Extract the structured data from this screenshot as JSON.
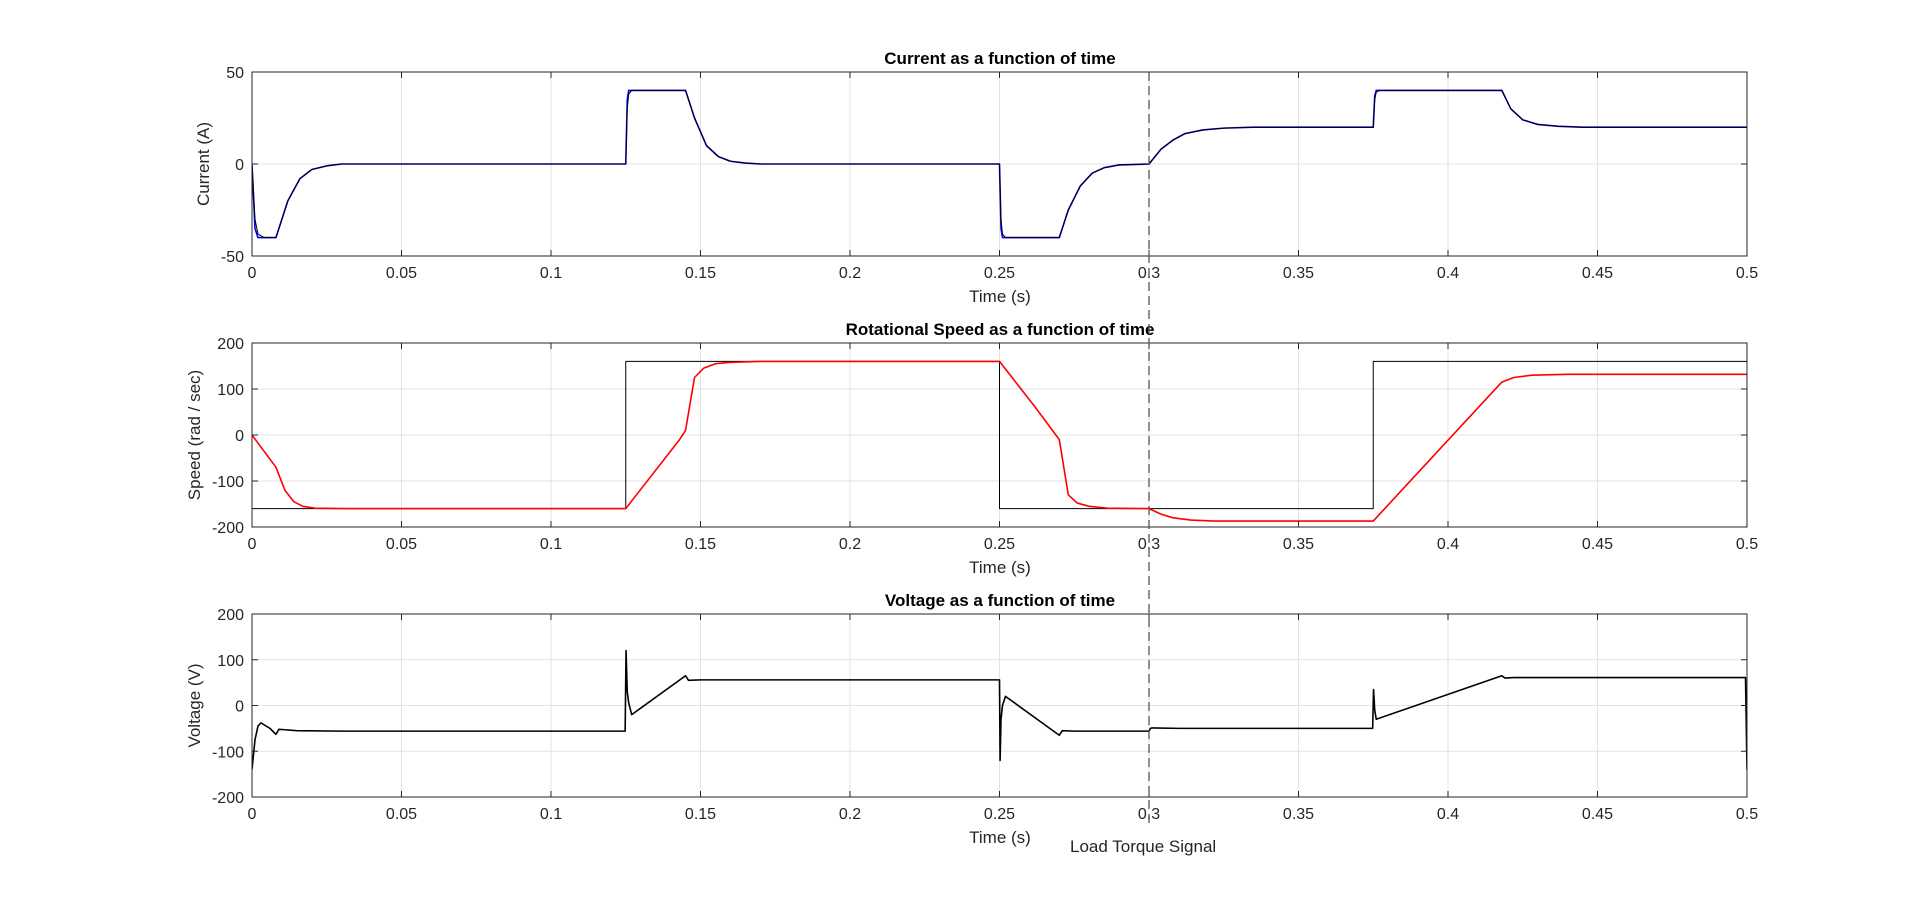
{
  "chart_data": [
    {
      "type": "line",
      "title": "Current as a function of time",
      "xlabel": "Time (s)",
      "ylabel": "Current (A)",
      "xlim": [
        0,
        0.5
      ],
      "ylim": [
        -50,
        50
      ],
      "xticks": [
        "0",
        "0.05",
        "0.1",
        "0.15",
        "0.2",
        "0.25",
        "0.3",
        "0.35",
        "0.4",
        "0.45",
        "0.5"
      ],
      "yticks": [
        "-50",
        "0",
        "50"
      ],
      "grid": true,
      "series": [
        {
          "color": "#0000ff",
          "width": 1.6,
          "points": [
            [
              0,
              0
            ],
            [
              0.001,
              -35
            ],
            [
              0.002,
              -40
            ],
            [
              0.008,
              -40
            ],
            [
              0.012,
              -20
            ],
            [
              0.016,
              -8
            ],
            [
              0.02,
              -3
            ],
            [
              0.025,
              -1
            ],
            [
              0.03,
              0
            ],
            [
              0.125,
              0
            ],
            [
              0.1255,
              35
            ],
            [
              0.126,
              40
            ],
            [
              0.145,
              40
            ],
            [
              0.148,
              25
            ],
            [
              0.152,
              10
            ],
            [
              0.156,
              4
            ],
            [
              0.16,
              1.5
            ],
            [
              0.165,
              0.5
            ],
            [
              0.17,
              0
            ],
            [
              0.25,
              0
            ],
            [
              0.2505,
              -35
            ],
            [
              0.251,
              -40
            ],
            [
              0.27,
              -40
            ],
            [
              0.273,
              -25
            ],
            [
              0.277,
              -12
            ],
            [
              0.281,
              -5
            ],
            [
              0.285,
              -2
            ],
            [
              0.29,
              -0.5
            ],
            [
              0.3,
              0
            ],
            [
              0.304,
              8
            ],
            [
              0.308,
              13
            ],
            [
              0.312,
              16.5
            ],
            [
              0.318,
              18.5
            ],
            [
              0.325,
              19.5
            ],
            [
              0.335,
              20
            ],
            [
              0.375,
              20
            ],
            [
              0.3755,
              37
            ],
            [
              0.376,
              40
            ],
            [
              0.418,
              40
            ],
            [
              0.421,
              30
            ],
            [
              0.425,
              24
            ],
            [
              0.43,
              21.5
            ],
            [
              0.437,
              20.5
            ],
            [
              0.445,
              20
            ],
            [
              0.5,
              20
            ]
          ]
        },
        {
          "color": "#000000",
          "width": 1.0,
          "points": [
            [
              0,
              0
            ],
            [
              0.001,
              -30
            ],
            [
              0.002,
              -38
            ],
            [
              0.004,
              -40
            ],
            [
              0.008,
              -40
            ],
            [
              0.012,
              -20
            ],
            [
              0.016,
              -8
            ],
            [
              0.02,
              -3
            ],
            [
              0.025,
              -1
            ],
            [
              0.03,
              0
            ],
            [
              0.125,
              0
            ],
            [
              0.1255,
              30
            ],
            [
              0.126,
              38
            ],
            [
              0.127,
              40
            ],
            [
              0.145,
              40
            ],
            [
              0.148,
              25
            ],
            [
              0.152,
              10
            ],
            [
              0.156,
              4
            ],
            [
              0.16,
              1.5
            ],
            [
              0.165,
              0.5
            ],
            [
              0.17,
              0
            ],
            [
              0.25,
              0
            ],
            [
              0.2505,
              -30
            ],
            [
              0.251,
              -38
            ],
            [
              0.252,
              -40
            ],
            [
              0.27,
              -40
            ],
            [
              0.273,
              -25
            ],
            [
              0.277,
              -12
            ],
            [
              0.281,
              -5
            ],
            [
              0.285,
              -2
            ],
            [
              0.29,
              -0.5
            ],
            [
              0.3,
              0
            ],
            [
              0.304,
              8
            ],
            [
              0.308,
              13
            ],
            [
              0.312,
              16.5
            ],
            [
              0.318,
              18.5
            ],
            [
              0.325,
              19.5
            ],
            [
              0.335,
              20
            ],
            [
              0.375,
              20
            ],
            [
              0.3755,
              35
            ],
            [
              0.376,
              39
            ],
            [
              0.377,
              40
            ],
            [
              0.418,
              40
            ],
            [
              0.421,
              30
            ],
            [
              0.425,
              24
            ],
            [
              0.43,
              21.5
            ],
            [
              0.437,
              20.5
            ],
            [
              0.445,
              20
            ],
            [
              0.5,
              20
            ]
          ]
        }
      ]
    },
    {
      "type": "line",
      "title": "Rotational Speed as a function of time",
      "xlabel": "Time (s)",
      "ylabel": "Speed (rad / sec)",
      "xlim": [
        0,
        0.5
      ],
      "ylim": [
        -200,
        200
      ],
      "xticks": [
        "0",
        "0.05",
        "0.1",
        "0.15",
        "0.2",
        "0.25",
        "0.3",
        "0.35",
        "0.4",
        "0.45",
        "0.5"
      ],
      "yticks": [
        "-200",
        "-100",
        "0",
        "100",
        "200"
      ],
      "grid": true,
      "series": [
        {
          "color": "#000000",
          "width": 1.0,
          "points": [
            [
              0,
              -160
            ],
            [
              0.125,
              -160
            ],
            [
              0.125,
              160
            ],
            [
              0.25,
              160
            ],
            [
              0.25,
              -160
            ],
            [
              0.375,
              -160
            ],
            [
              0.375,
              160
            ],
            [
              0.5,
              160
            ]
          ]
        },
        {
          "color": "#ff0000",
          "width": 1.6,
          "points": [
            [
              0,
              0
            ],
            [
              0.008,
              -70
            ],
            [
              0.011,
              -120
            ],
            [
              0.014,
              -145
            ],
            [
              0.017,
              -155
            ],
            [
              0.021,
              -159
            ],
            [
              0.03,
              -160
            ],
            [
              0.125,
              -160
            ],
            [
              0.143,
              -10
            ],
            [
              0.145,
              10
            ],
            [
              0.148,
              125
            ],
            [
              0.151,
              145
            ],
            [
              0.155,
              155
            ],
            [
              0.16,
              158
            ],
            [
              0.17,
              160
            ],
            [
              0.25,
              160
            ],
            [
              0.262,
              60
            ],
            [
              0.27,
              -10
            ],
            [
              0.273,
              -130
            ],
            [
              0.276,
              -148
            ],
            [
              0.28,
              -155
            ],
            [
              0.286,
              -159
            ],
            [
              0.3,
              -160
            ],
            [
              0.304,
              -172
            ],
            [
              0.308,
              -180
            ],
            [
              0.314,
              -185
            ],
            [
              0.322,
              -187
            ],
            [
              0.375,
              -187
            ],
            [
              0.418,
              115
            ],
            [
              0.422,
              125
            ],
            [
              0.428,
              130
            ],
            [
              0.44,
              132
            ],
            [
              0.5,
              132
            ]
          ]
        }
      ]
    },
    {
      "type": "line",
      "title": "Voltage as a function of time",
      "xlabel": "Time (s)",
      "ylabel": "Voltage (V)",
      "xlim": [
        0,
        0.5
      ],
      "ylim": [
        -200,
        200
      ],
      "xticks": [
        "0",
        "0.05",
        "0.1",
        "0.15",
        "0.2",
        "0.25",
        "0.3",
        "0.35",
        "0.4",
        "0.45",
        "0.5"
      ],
      "yticks": [
        "-200",
        "-100",
        "0",
        "100",
        "200"
      ],
      "grid": true,
      "series": [
        {
          "color": "#000000",
          "width": 1.6,
          "points": [
            [
              0,
              -140
            ],
            [
              0.001,
              -75
            ],
            [
              0.002,
              -45
            ],
            [
              0.003,
              -38
            ],
            [
              0.006,
              -50
            ],
            [
              0.008,
              -63
            ],
            [
              0.009,
              -52
            ],
            [
              0.011,
              -53
            ],
            [
              0.015,
              -55
            ],
            [
              0.03,
              -56
            ],
            [
              0.1248,
              -56
            ],
            [
              0.1251,
              120
            ],
            [
              0.1255,
              30
            ],
            [
              0.126,
              5
            ],
            [
              0.127,
              -20
            ],
            [
              0.145,
              65
            ],
            [
              0.146,
              55
            ],
            [
              0.15,
              56
            ],
            [
              0.25,
              56
            ],
            [
              0.2502,
              -120
            ],
            [
              0.2505,
              -30
            ],
            [
              0.251,
              0
            ],
            [
              0.252,
              20
            ],
            [
              0.27,
              -65
            ],
            [
              0.271,
              -55
            ],
            [
              0.275,
              -56
            ],
            [
              0.3,
              -56
            ],
            [
              0.3005,
              -50
            ],
            [
              0.301,
              -49
            ],
            [
              0.31,
              -50
            ],
            [
              0.3748,
              -50
            ],
            [
              0.3751,
              35
            ],
            [
              0.3755,
              -10
            ],
            [
              0.376,
              -30
            ],
            [
              0.418,
              65
            ],
            [
              0.419,
              60
            ],
            [
              0.422,
              61
            ],
            [
              0.4995,
              61
            ],
            [
              0.5,
              -140
            ]
          ]
        }
      ]
    }
  ],
  "annotation": {
    "label": "Load Torque Signal",
    "x": 0.3
  }
}
